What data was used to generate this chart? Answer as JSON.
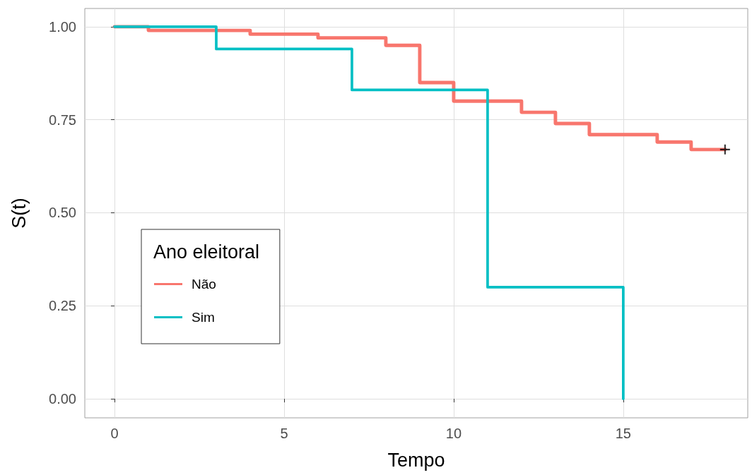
{
  "chart_data": {
    "type": "step",
    "xlabel": "Tempo",
    "ylabel": "S(t)",
    "legend_title": "Ano eleitoral",
    "legend": "bottom left",
    "grid": true,
    "line_style": "solid",
    "xlim": [
      -0.875,
      18.67
    ],
    "xticks": [
      0,
      5,
      10,
      15
    ],
    "ylim": [
      -0.051,
      1.049
    ],
    "yticks": [
      {
        "value": 0,
        "label": "0.00"
      },
      {
        "value": 0.25,
        "label": "0.25"
      },
      {
        "value": 0.5,
        "label": "0.50"
      },
      {
        "value": 0.75,
        "label": "0.75"
      },
      {
        "value": 1,
        "label": "1.00"
      }
    ],
    "series": [
      {
        "name": "Não",
        "color": "#f8766d",
        "x": [
          0,
          1,
          2,
          4,
          5,
          6,
          8,
          9,
          10,
          12,
          13,
          14,
          16,
          17,
          18
        ],
        "values": [
          1.0,
          0.99,
          0.99,
          0.98,
          0.98,
          0.97,
          0.95,
          0.85,
          0.8,
          0.77,
          0.74,
          0.71,
          0.69,
          0.67,
          0.67
        ]
      },
      {
        "name": "Sim",
        "color": "#00bfc4",
        "x": [
          0,
          3,
          7,
          11,
          15
        ],
        "values": [
          1.0,
          0.94,
          0.83,
          0.3,
          0
        ]
      },
      {
        "type": "scatter",
        "marker": "cross",
        "color": "#000000",
        "x": [
          18
        ],
        "values": [
          0.67
        ]
      }
    ]
  }
}
